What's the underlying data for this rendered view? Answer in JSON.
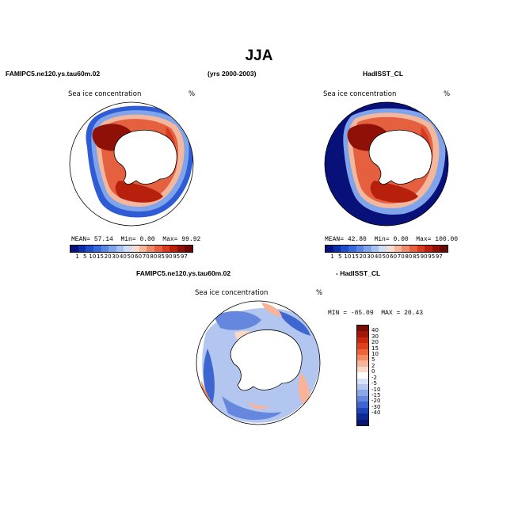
{
  "title": "JJA",
  "header_left": "FAMIPC5.ne120.ys.tau60m.02",
  "header_center": "(yrs 2000-2003)",
  "header_right": "HadISST_CL",
  "panel1": {
    "label": "Sea ice concentration",
    "units": "%",
    "stats": {
      "mean_label": "MEAN=",
      "mean": "57.14",
      "min_label": "Min=",
      "min": "0.00",
      "max_label": "Max=",
      "max": "99.92"
    }
  },
  "panel2": {
    "label": "Sea ice concentration",
    "units": "%",
    "stats": {
      "mean_label": "MEAN=",
      "mean": "42.80",
      "min_label": "Min=",
      "min": "0.00",
      "max_label": "Max=",
      "max": "100.00"
    }
  },
  "diff_header_left": "FAMIPC5.ne120.ys.tau60m.02",
  "diff_header_right": "- HadISST_CL",
  "panel3": {
    "label": "Sea ice concentration",
    "units": "%",
    "stats": {
      "min_label": "MIN =",
      "min": "-85.09",
      "max_label": "MAX =",
      "max": "20.43"
    }
  },
  "colorbar_top": {
    "labels": [
      "1",
      "5",
      "10",
      "15",
      "20",
      "30",
      "40",
      "50",
      "60",
      "70",
      "80",
      "85",
      "90",
      "95",
      "97"
    ],
    "colors": [
      "#08107a",
      "#0c2fa8",
      "#1f4cc8",
      "#3a68d8",
      "#5a86e2",
      "#7fa4ea",
      "#a8c2f0",
      "#d0dcf5",
      "#f5dcd2",
      "#f3b79e",
      "#ee8a6c",
      "#e5603e",
      "#d63b1f",
      "#b8200e",
      "#8f1006",
      "#6a0704"
    ]
  },
  "colorbar_diff": {
    "labels": [
      "40",
      "30",
      "20",
      "15",
      "10",
      "5",
      "2",
      "0",
      "-2",
      "-5",
      "-10",
      "-15",
      "-20",
      "-30",
      "-40"
    ],
    "colors": [
      "#7a0b05",
      "#a5160a",
      "#c9280f",
      "#e0401c",
      "#ee6436",
      "#f5895f",
      "#f8b398",
      "#fbd9c9",
      "#ffffff",
      "#d7e2f7",
      "#b2c6f0",
      "#8aa8e8",
      "#6588de",
      "#3e66d0",
      "#1d44b8",
      "#0c2a94",
      "#061672"
    ]
  }
}
